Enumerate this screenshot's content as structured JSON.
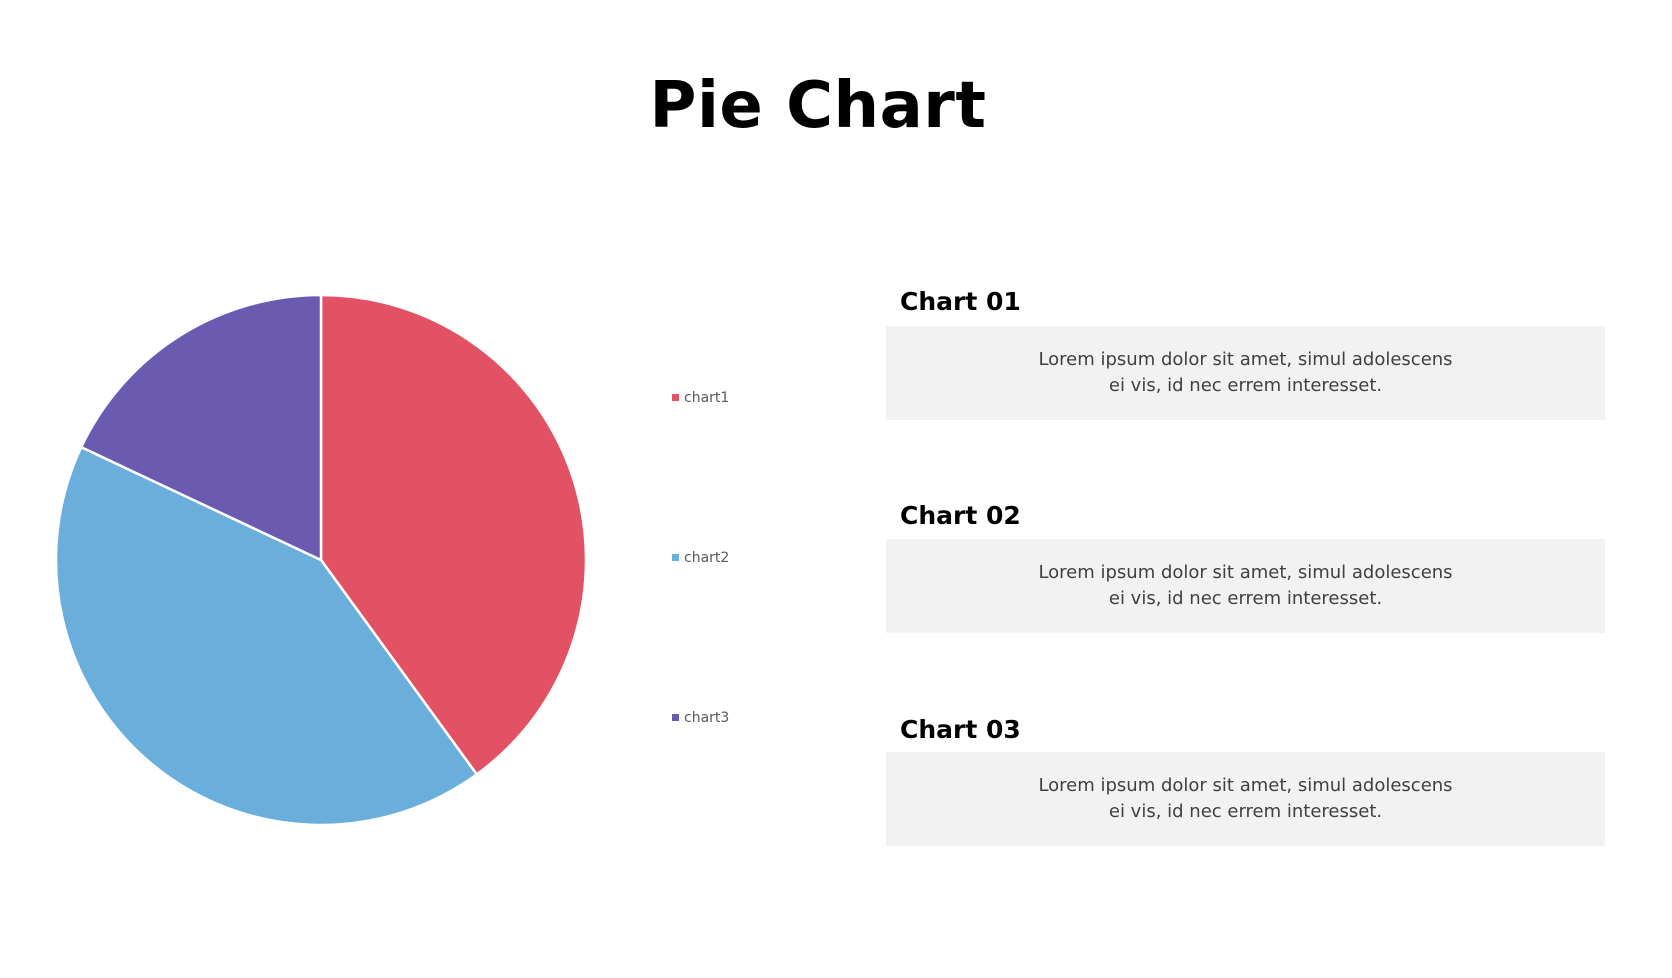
{
  "title": "Pie Chart",
  "chart_data": {
    "type": "pie",
    "title": "",
    "labels": [
      "chart1",
      "chart2",
      "chart3"
    ],
    "values": [
      40,
      42,
      18
    ],
    "colors": [
      "#e35264",
      "#6aaedc",
      "#6b5bb0"
    ],
    "start_angle_deg": 0,
    "direction": "clockwise",
    "legend_position": "right"
  },
  "cards": [
    {
      "title": "Chart 01",
      "text": "Lorem ipsum dolor sit amet, simul adolescens ei vis, id nec errem interesset."
    },
    {
      "title": "Chart 02",
      "text": "Lorem ipsum dolor sit amet, simul adolescens ei vis, id nec errem interesset."
    },
    {
      "title": "Chart 03",
      "text": "Lorem ipsum dolor sit amet, simul adolescens ei vis, id nec errem interesset."
    }
  ]
}
